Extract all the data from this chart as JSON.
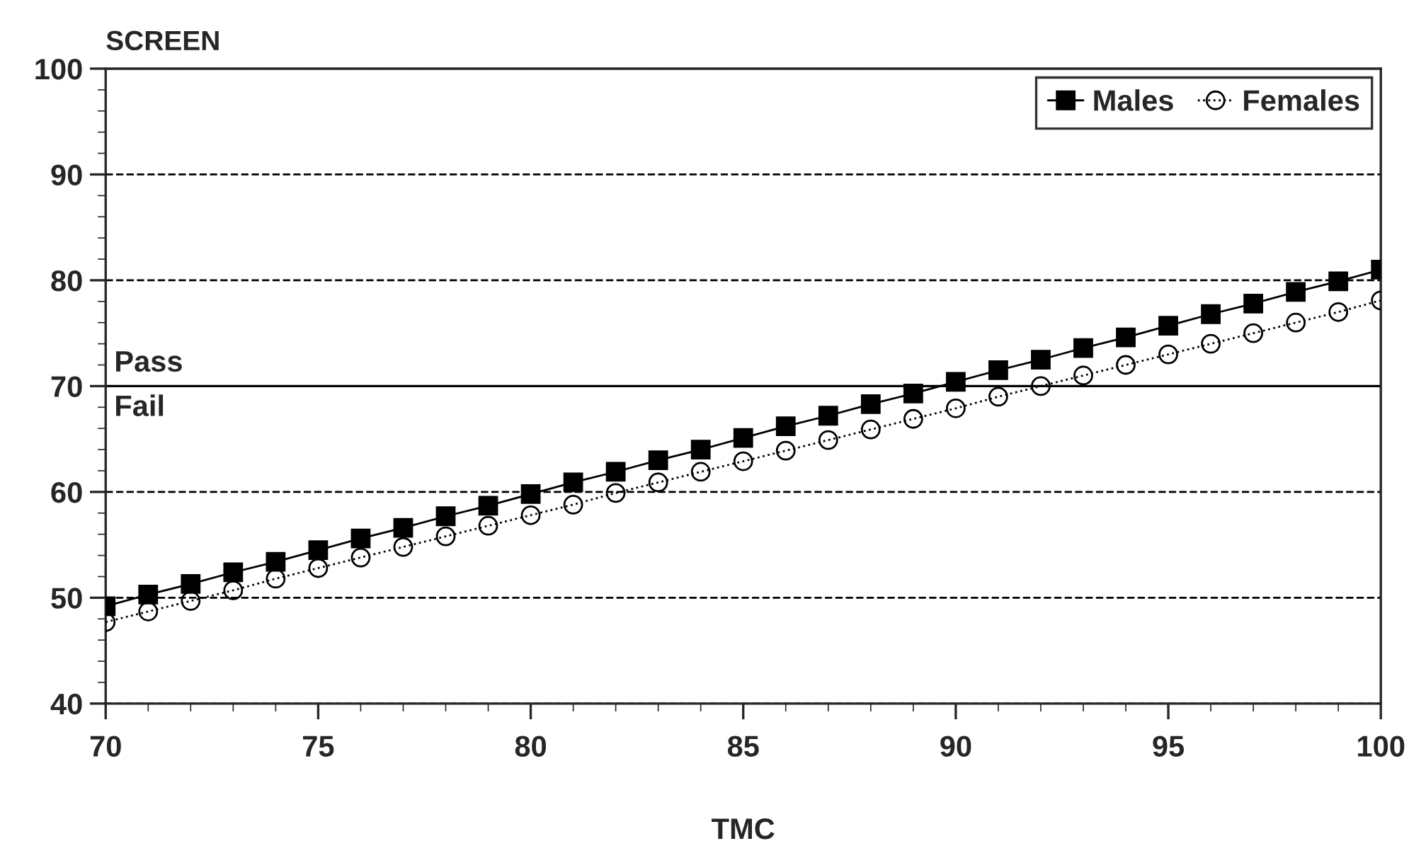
{
  "chart_data": {
    "type": "line",
    "xlabel": "TMC",
    "ylabel": "SCREEN",
    "x": [
      70,
      71,
      72,
      73,
      74,
      75,
      76,
      77,
      78,
      79,
      80,
      81,
      82,
      83,
      84,
      85,
      86,
      87,
      88,
      89,
      90,
      91,
      92,
      93,
      94,
      95,
      96,
      97,
      98,
      99,
      100
    ],
    "series": [
      {
        "name": "Males",
        "color": "#000000",
        "marker": "square",
        "line_style": "solid",
        "values": [
          49.2,
          50.3,
          51.3,
          52.4,
          53.4,
          54.5,
          55.6,
          56.6,
          57.7,
          58.7,
          59.8,
          60.9,
          61.9,
          63.0,
          64.0,
          65.1,
          66.2,
          67.2,
          68.3,
          69.3,
          70.4,
          71.5,
          72.5,
          73.6,
          74.6,
          75.7,
          76.8,
          77.8,
          78.9,
          79.9,
          81.0
        ]
      },
      {
        "name": "Females",
        "color": "#000000",
        "marker": "circle",
        "line_style": "dotted",
        "values": [
          47.7,
          48.7,
          49.7,
          50.7,
          51.8,
          52.8,
          53.8,
          54.8,
          55.8,
          56.8,
          57.8,
          58.8,
          59.9,
          60.9,
          61.9,
          62.9,
          63.9,
          64.9,
          65.9,
          66.9,
          67.9,
          69.0,
          70.0,
          71.0,
          72.0,
          73.0,
          74.0,
          75.0,
          76.0,
          77.0,
          78.1
        ]
      }
    ],
    "xlim": [
      70,
      100
    ],
    "xticks": [
      70,
      75,
      80,
      85,
      90,
      95,
      100
    ],
    "ylim": [
      40,
      100
    ],
    "yticks": [
      40,
      50,
      60,
      70,
      80,
      90,
      100
    ],
    "grid": "y",
    "legend": "top right",
    "ref_lines": [
      {
        "axis": "y",
        "value": 70,
        "label": "Pass",
        "color": "#000000",
        "line_style": "solid"
      }
    ],
    "annotations": [
      "Fail"
    ]
  }
}
